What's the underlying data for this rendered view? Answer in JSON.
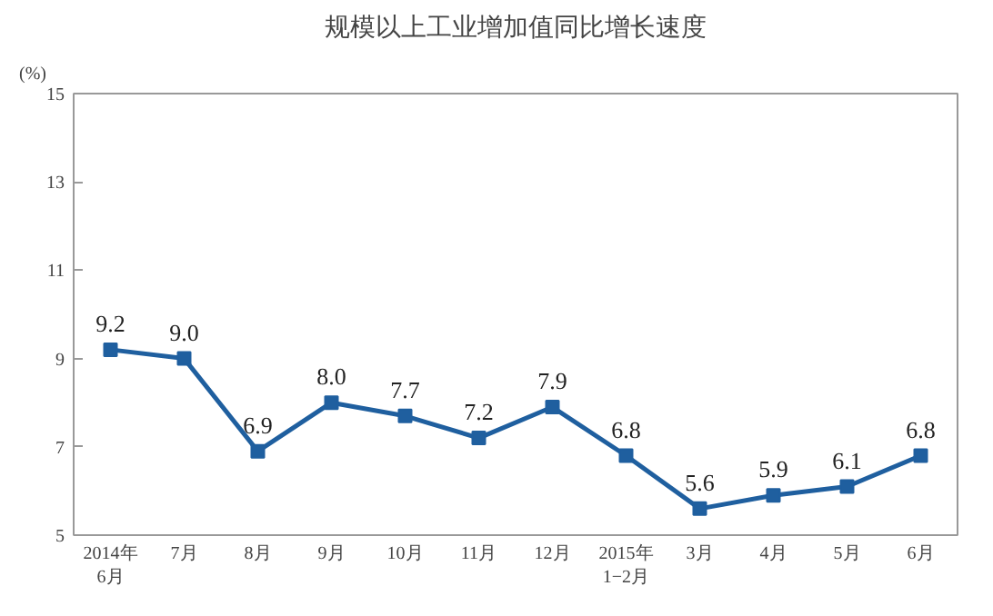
{
  "chart_data": {
    "type": "line",
    "title": "规模以上工业增加值同比增长速度",
    "ylabel": "(%)",
    "categories": [
      "2014年\n6月",
      "7月",
      "8月",
      "9月",
      "10月",
      "11月",
      "12月",
      "2015年\n1−2月",
      "3月",
      "4月",
      "5月",
      "6月"
    ],
    "series": [
      {
        "color": "#1f5f9f",
        "values": [
          9.2,
          9.0,
          6.9,
          8.0,
          7.7,
          7.2,
          7.9,
          6.8,
          5.6,
          5.9,
          6.1,
          6.8
        ],
        "value_labels": [
          "9.2",
          "9.0",
          "6.9",
          "8.0",
          "7.7",
          "7.2",
          "7.9",
          "6.8",
          "5.6",
          "5.9",
          "6.1",
          "6.8"
        ]
      }
    ],
    "ylim": [
      5,
      15
    ],
    "yticks": [
      5,
      7,
      9,
      11,
      13,
      15
    ],
    "grid": false,
    "marker": "square",
    "line_style": "solid"
  }
}
